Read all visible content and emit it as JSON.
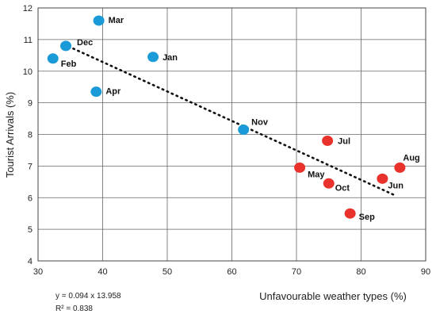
{
  "chart_data": {
    "type": "scatter",
    "xlabel": "Unfavourable weather types (%)",
    "ylabel": "Tourist Arrivals (%)",
    "xlim": [
      30,
      90
    ],
    "ylim": [
      4,
      12
    ],
    "x_ticks": [
      30,
      40,
      50,
      60,
      70,
      80,
      90
    ],
    "y_ticks": [
      4,
      5,
      6,
      7,
      8,
      9,
      10,
      11,
      12
    ],
    "grid": true,
    "colors": {
      "group_a": "#1a9bd7",
      "group_b": "#e8322b",
      "trend": "#111111"
    },
    "points": [
      {
        "label": "Jan",
        "x": 47.8,
        "y": 10.45,
        "group": "group_a"
      },
      {
        "label": "Feb",
        "x": 32.3,
        "y": 10.4,
        "group": "group_a"
      },
      {
        "label": "Mar",
        "x": 39.4,
        "y": 11.6,
        "group": "group_a"
      },
      {
        "label": "Apr",
        "x": 39.0,
        "y": 9.35,
        "group": "group_a"
      },
      {
        "label": "May",
        "x": 70.5,
        "y": 6.95,
        "group": "group_b"
      },
      {
        "label": "Jun",
        "x": 83.3,
        "y": 6.6,
        "group": "group_b"
      },
      {
        "label": "Jul",
        "x": 74.8,
        "y": 7.8,
        "group": "group_b"
      },
      {
        "label": "Aug",
        "x": 86.0,
        "y": 6.95,
        "group": "group_b"
      },
      {
        "label": "Sep",
        "x": 78.3,
        "y": 5.5,
        "group": "group_b"
      },
      {
        "label": "Oct",
        "x": 75.0,
        "y": 6.45,
        "group": "group_b"
      },
      {
        "label": "Nov",
        "x": 61.8,
        "y": 8.15,
        "group": "group_a"
      },
      {
        "label": "Dec",
        "x": 34.3,
        "y": 10.8,
        "group": "group_a"
      }
    ],
    "trendline": {
      "x": [
        34.0,
        85.5
      ],
      "y": [
        10.85,
        6.05
      ]
    },
    "equation": "y = 0.094 x 13.958",
    "r_squared": "R² = 0.838"
  }
}
